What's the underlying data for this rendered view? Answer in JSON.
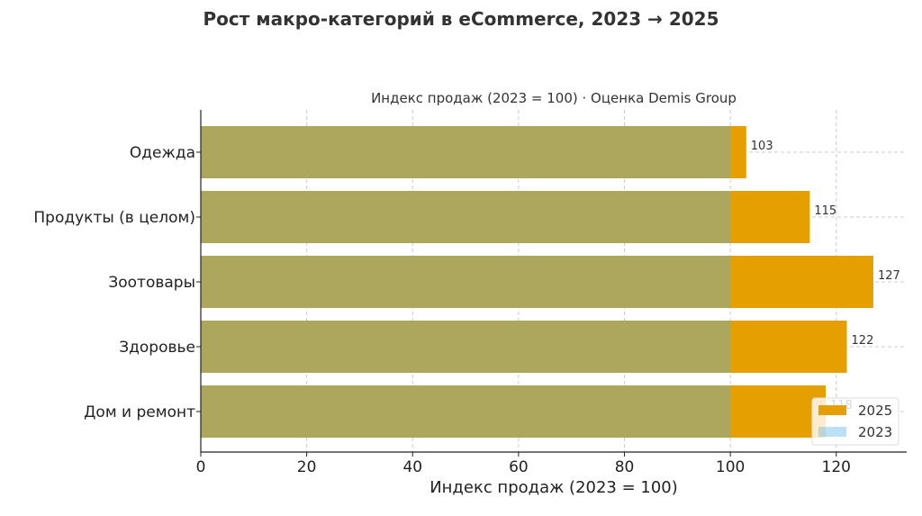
{
  "chart_data": {
    "type": "bar",
    "orientation": "horizontal",
    "title": "Рост макро-категорий в eCommerce, 2023 → 2025",
    "subtitle": "Индекс продаж (2023 = 100) · Оценка Demis Group",
    "xlabel": "Индекс продаж (2023 = 100)",
    "ylabel": "",
    "categories": [
      "Одежда",
      "Продукты (в целом)",
      "Зоотовары",
      "Здоровье",
      "Дом и ремонт"
    ],
    "series": [
      {
        "name": "2025",
        "values": [
          103,
          115,
          127,
          122,
          118
        ],
        "color": "#E69F00",
        "opacity": 1
      },
      {
        "name": "2023",
        "values": [
          100,
          100,
          100,
          100,
          100
        ],
        "color": "#56B4E9",
        "opacity": 0.4
      }
    ],
    "data_labels": [
      "103",
      "115",
      "127",
      "122",
      "118"
    ],
    "xlim": [
      0,
      133.3
    ],
    "xticks": [
      0,
      20,
      40,
      60,
      80,
      100,
      120
    ],
    "grid": true,
    "legend": "lower-right"
  }
}
